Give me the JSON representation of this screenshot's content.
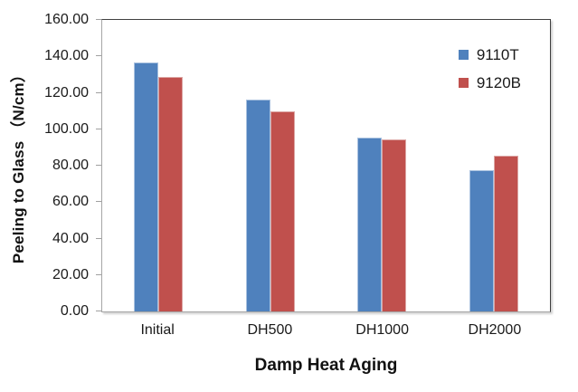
{
  "chart_data": {
    "type": "bar",
    "title": "",
    "categories": [
      "Initial",
      "DH500",
      "DH1000",
      "DH2000"
    ],
    "series": [
      {
        "name": "9110T",
        "color": "#4F81BD",
        "border_color": "#A9C1DF",
        "values": [
          136.5,
          116.5,
          95.5,
          77.5
        ]
      },
      {
        "name": "9120B",
        "color": "#C0504D",
        "border_color": "#DCA6A4",
        "values": [
          128.5,
          110.0,
          94.5,
          85.5
        ]
      }
    ],
    "xlabel": "Damp Heat Aging",
    "ylabel": "Peeling to Glass （N/cm）",
    "ylim": [
      0,
      160
    ],
    "ytick_step": 20,
    "ytick_labels": [
      "0.00",
      "20.00",
      "40.00",
      "60.00",
      "80.00",
      "100.00",
      "120.00",
      "140.00",
      "160.00"
    ],
    "grid": false,
    "legend": {
      "position": "top-right-inside"
    },
    "axis_colors": {
      "plot_border": "#404040",
      "axis_line": "#a6a6a6"
    },
    "text_color": "#1a1a1a"
  }
}
